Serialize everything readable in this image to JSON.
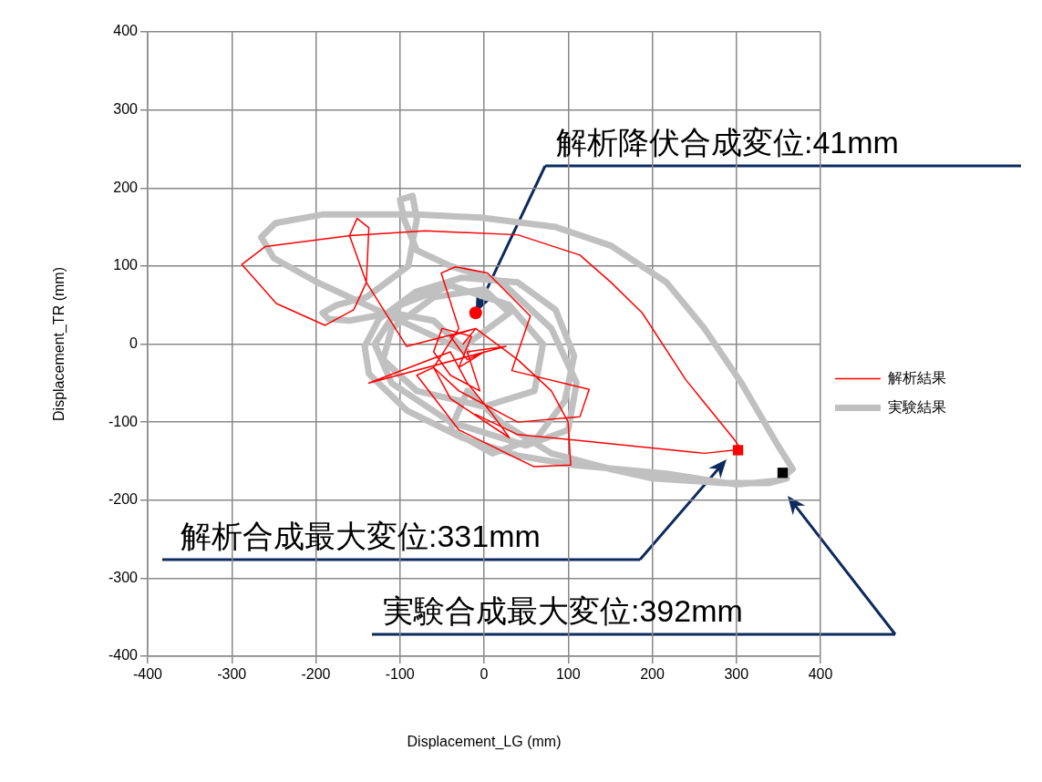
{
  "chart_data": {
    "type": "line",
    "xlabel": "Displacement_LG (mm)",
    "ylabel": "Displacement_TR (mm)",
    "xlim": [
      -400,
      400
    ],
    "xticks": [
      -400,
      -300,
      -200,
      -100,
      0,
      100,
      200,
      300,
      400
    ],
    "ylim": [
      -400,
      400
    ],
    "yticks": [
      -400,
      -300,
      -200,
      -100,
      0,
      100,
      200,
      300,
      400
    ],
    "grid": true,
    "legend": "right",
    "series": [
      {
        "name": "実験結果",
        "type": "line",
        "color": "#c0c0c0",
        "x": [
          -20,
          30,
          0,
          -60,
          -110,
          -120,
          -80,
          0,
          60,
          70,
          30,
          -40,
          -100,
          -130,
          -110,
          -40,
          50,
          100,
          110,
          80,
          20,
          -40,
          -80,
          -95,
          -100,
          -85,
          -80,
          -90,
          -140,
          -175,
          -192,
          -185,
          -160,
          -110,
          -60,
          -20,
          -60,
          -150,
          -200,
          -250,
          -265,
          -248,
          -192,
          -81,
          -4,
          85,
          151,
          217,
          262,
          306,
          350,
          367,
          350,
          300,
          217,
          107,
          40,
          -26,
          -92,
          -137,
          -142,
          -125,
          -81,
          -26,
          40,
          85,
          107,
          96,
          63,
          10,
          -40,
          -20,
          20,
          80,
          150,
          200,
          284,
          339,
          360,
          355
        ],
        "values": [
          0,
          40,
          70,
          60,
          20,
          -20,
          -60,
          -80,
          -60,
          0,
          50,
          75,
          50,
          0,
          -50,
          -100,
          -130,
          -110,
          -50,
          20,
          80,
          100,
          120,
          160,
          185,
          190,
          160,
          100,
          60,
          50,
          40,
          32,
          30,
          40,
          30,
          -10,
          10,
          55,
          80,
          110,
          137,
          155,
          166,
          166,
          162,
          150,
          126,
          79,
          20,
          -50,
          -131,
          -160,
          -175,
          -180,
          -166,
          -155,
          -143,
          -120,
          -85,
          -38,
          -3,
          32,
          67,
          85,
          79,
          44,
          -15,
          -73,
          -120,
          -140,
          -110,
          -60,
          -100,
          -140,
          -160,
          -172,
          -178,
          -178,
          -172,
          -165
        ]
      },
      {
        "name": "解析結果",
        "type": "line",
        "color": "#ff0000",
        "x": [
          -25,
          -10,
          -40,
          -20,
          0,
          -30,
          -15,
          -50,
          -60,
          -40,
          -5,
          -20,
          26,
          -137,
          -40,
          -20,
          10,
          30,
          -40,
          -60,
          -30,
          -51,
          -34,
          4,
          55,
          33,
          125,
          114,
          40,
          -30,
          -60,
          -80,
          -30,
          59,
          103,
          100,
          80,
          40,
          -10,
          -92,
          -140,
          -137,
          -151,
          -160,
          -140,
          -155,
          -189,
          -247,
          -288,
          -260,
          -159,
          -70,
          40,
          114,
          151,
          188,
          240,
          298,
          306,
          262,
          107,
          40,
          -10
        ],
        "values": [
          0,
          20,
          10,
          -20,
          -10,
          -30,
          10,
          20,
          -10,
          -40,
          -60,
          -10,
          -3,
          -50,
          -10,
          -50,
          -90,
          -120,
          -70,
          -30,
          20,
          91,
          99,
          91,
          36,
          -34,
          -58,
          -93,
          -100,
          -60,
          -30,
          -40,
          -110,
          -157,
          -155,
          -100,
          -60,
          -20,
          20,
          -3,
          79,
          149,
          161,
          139,
          79,
          44,
          24,
          52,
          102,
          125,
          139,
          145,
          140,
          114,
          79,
          40,
          -46,
          -123,
          -135,
          -140,
          -123,
          -116,
          -90
        ]
      },
      {
        "type": "scatter",
        "marker": "circle",
        "color": "#ff0000",
        "x": [
          -10
        ],
        "values": [
          40
        ]
      },
      {
        "type": "scatter",
        "marker": "square",
        "color": "#ff0000",
        "x": [
          302
        ],
        "values": [
          -136
        ]
      },
      {
        "type": "scatter",
        "marker": "square",
        "color": "#000000",
        "x": [
          355
        ],
        "values": [
          -165
        ]
      }
    ],
    "annotations": [
      {
        "text": "解析降伏合成変位:41mm",
        "x": -10,
        "y": 40
      },
      "解析合成最大変位:331mm",
      "実験合成最大変位:392mm"
    ]
  }
}
